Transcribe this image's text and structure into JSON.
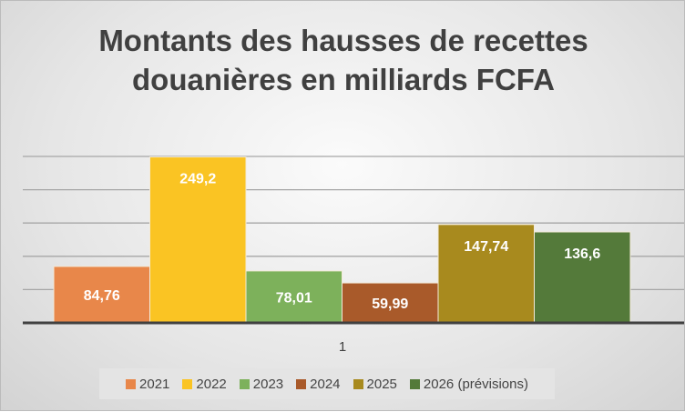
{
  "chart_data": {
    "type": "bar",
    "title": "Montants des hausses de recettes douanières en milliards FCFA",
    "title_lines": [
      "Montants des hausses de recettes",
      "douanières en milliards FCFA"
    ],
    "categories": [
      "1"
    ],
    "ylim": [
      0,
      250
    ],
    "grid": true,
    "legend_position": "bottom",
    "series": [
      {
        "name": "2021",
        "values": [
          84.76
        ],
        "label": "84,76",
        "color": "#E8874A"
      },
      {
        "name": "2022",
        "values": [
          249.2
        ],
        "label": "249,2",
        "color": "#FAC423"
      },
      {
        "name": "2023",
        "values": [
          78.01
        ],
        "label": "78,01",
        "color": "#7DB15B"
      },
      {
        "name": "2024",
        "values": [
          59.99
        ],
        "label": "59,99",
        "color": "#A95A2A"
      },
      {
        "name": "2025",
        "values": [
          147.74
        ],
        "label": "147,74",
        "color": "#A88A1E"
      },
      {
        "name": "2026 (prévisions)",
        "values": [
          136.6
        ],
        "label": "136,6",
        "color": "#547A3A"
      }
    ]
  }
}
